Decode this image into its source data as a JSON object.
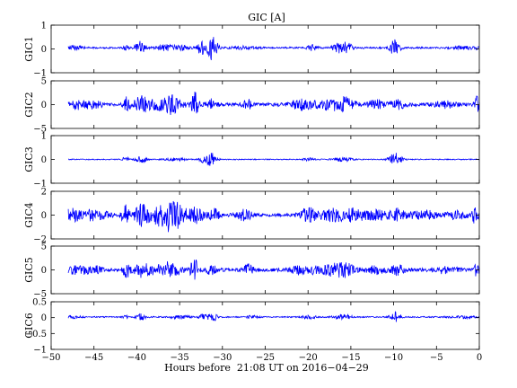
{
  "chart_data": {
    "type": "line",
    "title": "GIC [A]",
    "xlabel": "Hours before  21:08 UT on 2016−04−29",
    "xlim": [
      -50,
      0
    ],
    "xticks": [
      -50,
      -45,
      -40,
      -35,
      -30,
      -25,
      -20,
      -15,
      -10,
      -5,
      0
    ],
    "xtick_labels": [
      "−50",
      "−45",
      "−40",
      "−35",
      "−30",
      "−25",
      "−20",
      "−15",
      "−10",
      "−5",
      "0"
    ],
    "series_color": "#0000ff",
    "grid": false,
    "panels": [
      {
        "ylabel": "GIC1",
        "ylim": [
          -1,
          1
        ],
        "yticks": [
          -1,
          0,
          1
        ],
        "ytick_labels": [
          "−1",
          "0",
          "1"
        ],
        "baseline": 0.05,
        "noise": 0.035,
        "bursts": [
          {
            "t": -47.5,
            "amp": 0.09,
            "width": 1.0
          },
          {
            "t": -41.3,
            "amp": 0.1,
            "width": 0.3
          },
          {
            "t": -39.6,
            "amp": 0.25,
            "width": 0.6
          },
          {
            "t": -36.5,
            "amp": 0.12,
            "width": 1.2
          },
          {
            "t": -34.5,
            "amp": 0.1,
            "width": 0.8
          },
          {
            "t": -32.5,
            "amp": 0.3,
            "width": 0.4
          },
          {
            "t": -31.2,
            "amp": 0.55,
            "width": 0.6
          },
          {
            "t": -27.5,
            "amp": 0.06,
            "width": 1.5
          },
          {
            "t": -19.5,
            "amp": 0.12,
            "width": 0.6
          },
          {
            "t": -16.5,
            "amp": 0.18,
            "width": 0.9
          },
          {
            "t": -15.5,
            "amp": 0.22,
            "width": 0.6
          },
          {
            "t": -9.9,
            "amp": 0.32,
            "width": 0.6
          },
          {
            "t": -2.0,
            "amp": 0.06,
            "width": 1.5
          },
          {
            "t": -0.2,
            "amp": 0.08,
            "width": 0.3
          }
        ]
      },
      {
        "ylabel": "GIC2",
        "ylim": [
          -5,
          5
        ],
        "yticks": [
          -5,
          0,
          5
        ],
        "ytick_labels": [
          "−5",
          "0",
          "5"
        ],
        "baseline": 0.0,
        "noise": 0.35,
        "bursts": [
          {
            "t": -47.0,
            "amp": 0.8,
            "width": 1.2
          },
          {
            "t": -45.0,
            "amp": 0.6,
            "width": 1.0
          },
          {
            "t": -41.2,
            "amp": 1.4,
            "width": 0.4
          },
          {
            "t": -39.5,
            "amp": 1.6,
            "width": 0.8
          },
          {
            "t": -38.0,
            "amp": 0.7,
            "width": 1.0
          },
          {
            "t": -36.0,
            "amp": 1.8,
            "width": 1.2
          },
          {
            "t": -33.2,
            "amp": 2.8,
            "width": 0.4
          },
          {
            "t": -31.3,
            "amp": 1.0,
            "width": 0.6
          },
          {
            "t": -27.0,
            "amp": 1.0,
            "width": 0.6
          },
          {
            "t": -20.5,
            "amp": 1.0,
            "width": 1.5
          },
          {
            "t": -17.0,
            "amp": 1.2,
            "width": 1.5
          },
          {
            "t": -15.5,
            "amp": 0.9,
            "width": 1.0
          },
          {
            "t": -12.0,
            "amp": 0.8,
            "width": 1.2
          },
          {
            "t": -9.5,
            "amp": 1.0,
            "width": 0.8
          },
          {
            "t": -4.0,
            "amp": 0.6,
            "width": 1.5
          },
          {
            "t": -0.3,
            "amp": 1.6,
            "width": 0.3
          }
        ]
      },
      {
        "ylabel": "GIC3",
        "ylim": [
          -1,
          1
        ],
        "yticks": [
          -1,
          0,
          1
        ],
        "ytick_labels": [
          "−1",
          "0",
          "1"
        ],
        "baseline": 0.0,
        "noise": 0.02,
        "bursts": [
          {
            "t": -41.3,
            "amp": 0.15,
            "width": 0.3
          },
          {
            "t": -39.5,
            "amp": 0.16,
            "width": 0.6
          },
          {
            "t": -35.5,
            "amp": 0.06,
            "width": 1.2
          },
          {
            "t": -32.2,
            "amp": 0.12,
            "width": 0.5
          },
          {
            "t": -31.3,
            "amp": 0.3,
            "width": 0.6
          },
          {
            "t": -19.8,
            "amp": 0.06,
            "width": 0.8
          },
          {
            "t": -16.0,
            "amp": 0.08,
            "width": 1.2
          },
          {
            "t": -9.8,
            "amp": 0.3,
            "width": 0.7
          }
        ]
      },
      {
        "ylabel": "GIC4",
        "ylim": [
          -2,
          2
        ],
        "yticks": [
          -2,
          0,
          2
        ],
        "ytick_labels": [
          "−2",
          "0",
          "2"
        ],
        "baseline": 0.0,
        "noise": 0.12,
        "bursts": [
          {
            "t": -47.5,
            "amp": 0.5,
            "width": 1.0
          },
          {
            "t": -45.5,
            "amp": 0.4,
            "width": 1.0
          },
          {
            "t": -44.0,
            "amp": 0.3,
            "width": 1.0
          },
          {
            "t": -41.3,
            "amp": 0.8,
            "width": 0.5
          },
          {
            "t": -39.5,
            "amp": 0.8,
            "width": 0.8
          },
          {
            "t": -37.5,
            "amp": 0.5,
            "width": 1.5
          },
          {
            "t": -35.8,
            "amp": 1.2,
            "width": 1.5
          },
          {
            "t": -33.0,
            "amp": 0.6,
            "width": 0.8
          },
          {
            "t": -31.0,
            "amp": 0.6,
            "width": 0.6
          },
          {
            "t": -27.5,
            "amp": 0.4,
            "width": 1.0
          },
          {
            "t": -20.0,
            "amp": 0.6,
            "width": 1.0
          },
          {
            "t": -17.0,
            "amp": 0.5,
            "width": 1.5
          },
          {
            "t": -14.5,
            "amp": 0.5,
            "width": 1.2
          },
          {
            "t": -12.0,
            "amp": 0.4,
            "width": 1.2
          },
          {
            "t": -9.5,
            "amp": 0.5,
            "width": 1.0
          },
          {
            "t": -6.5,
            "amp": 0.4,
            "width": 1.5
          },
          {
            "t": -2.5,
            "amp": 0.3,
            "width": 1.5
          },
          {
            "t": -0.5,
            "amp": 0.8,
            "width": 0.3
          }
        ]
      },
      {
        "ylabel": "GIC5",
        "ylim": [
          -5,
          5
        ],
        "yticks": [
          -5,
          0,
          5
        ],
        "ytick_labels": [
          "−5",
          "0",
          "5"
        ],
        "baseline": 0.0,
        "noise": 0.35,
        "bursts": [
          {
            "t": -47.0,
            "amp": 0.8,
            "width": 1.2
          },
          {
            "t": -45.0,
            "amp": 0.7,
            "width": 1.0
          },
          {
            "t": -41.2,
            "amp": 1.6,
            "width": 0.4
          },
          {
            "t": -39.5,
            "amp": 1.4,
            "width": 0.8
          },
          {
            "t": -38.0,
            "amp": 0.7,
            "width": 1.0
          },
          {
            "t": -36.0,
            "amp": 1.6,
            "width": 1.2
          },
          {
            "t": -33.3,
            "amp": 2.6,
            "width": 0.4
          },
          {
            "t": -31.3,
            "amp": 1.0,
            "width": 0.6
          },
          {
            "t": -27.0,
            "amp": 1.0,
            "width": 0.6
          },
          {
            "t": -20.5,
            "amp": 1.0,
            "width": 1.5
          },
          {
            "t": -17.0,
            "amp": 1.1,
            "width": 1.5
          },
          {
            "t": -15.5,
            "amp": 0.9,
            "width": 1.0
          },
          {
            "t": -12.0,
            "amp": 0.8,
            "width": 1.2
          },
          {
            "t": -9.5,
            "amp": 1.0,
            "width": 0.8
          },
          {
            "t": -4.0,
            "amp": 0.6,
            "width": 1.5
          },
          {
            "t": -0.3,
            "amp": 1.3,
            "width": 0.3
          }
        ]
      },
      {
        "ylabel": "GIC6",
        "ylim": [
          -1,
          0.5
        ],
        "yticks": [
          -1,
          -0.5,
          0,
          0.5
        ],
        "ytick_labels": [
          "−1",
          "−0.5",
          "0",
          "0.5"
        ],
        "baseline": 0.02,
        "noise": 0.02,
        "bursts": [
          {
            "t": -47.5,
            "amp": 0.04,
            "width": 1.0
          },
          {
            "t": -41.3,
            "amp": 0.05,
            "width": 0.3
          },
          {
            "t": -39.5,
            "amp": 0.1,
            "width": 0.6
          },
          {
            "t": -35.0,
            "amp": 0.05,
            "width": 1.2
          },
          {
            "t": -32.3,
            "amp": 0.08,
            "width": 0.4
          },
          {
            "t": -31.2,
            "amp": 0.17,
            "width": 0.5
          },
          {
            "t": -26.5,
            "amp": 0.05,
            "width": 0.6
          },
          {
            "t": -19.8,
            "amp": 0.06,
            "width": 0.8
          },
          {
            "t": -16.0,
            "amp": 0.08,
            "width": 1.0
          },
          {
            "t": -9.8,
            "amp": 0.16,
            "width": 0.6
          },
          {
            "t": -2.0,
            "amp": 0.04,
            "width": 1.5
          }
        ]
      }
    ]
  }
}
